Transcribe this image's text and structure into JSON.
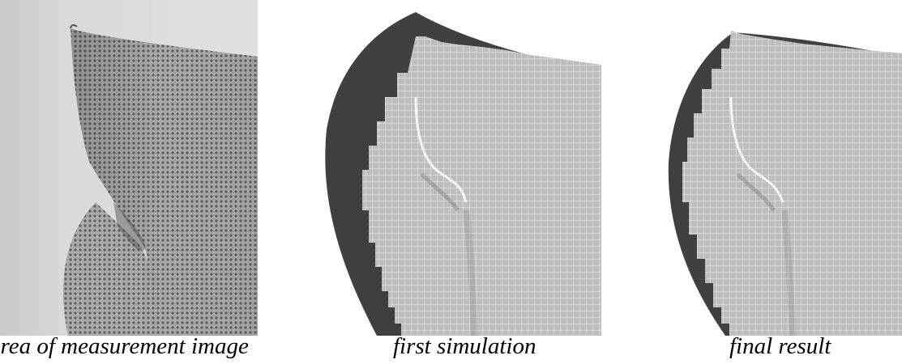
{
  "captions": {
    "measurement": "area of measurement image",
    "first_simulation": "first simulation",
    "final": "final result"
  },
  "colors": {
    "background": "#ffffff",
    "sheet_grey": "#a8a8a8",
    "grid_dot": "#5f5f5f",
    "sim_mesh_fill": "#bfbfbf",
    "sim_mesh_line": "#f2f2f2",
    "reference_dark": "#404040"
  },
  "icons": {
    "measurement_panel": "photo-of-deformed-sheet-with-dot-grid",
    "simulation_panels": "fem-mesh-overlay-on-dark-reference-shape"
  }
}
